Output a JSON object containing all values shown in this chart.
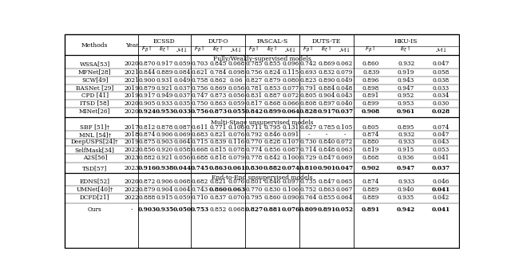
{
  "dataset_headers": [
    "ECSSD",
    "DUT-O",
    "PASCAL-S",
    "DUTS-TE",
    "HKU-IS"
  ],
  "section_headers": [
    "Fully/Weakly-supervised models",
    "Multi-Stage unsupervised models",
    "End-to-End unsupervised models"
  ],
  "rows_section1": [
    [
      "WSSA[53]",
      "2020",
      "0.870",
      "0.917",
      "0.059",
      "0.703",
      "0.845",
      "0.068",
      "0.785",
      "0.855",
      "0.096",
      "0.742",
      "0.869",
      "0.062",
      "0.860",
      "0.932",
      "0.047"
    ],
    [
      "MFNet[28]",
      "2021",
      "0.844",
      "0.889",
      "0.084",
      "0.621",
      "0.784",
      "0.098",
      "0.756",
      "0.824",
      "0.115",
      "0.693",
      "0.832",
      "0.079",
      "0.839",
      "0.919",
      "0.058"
    ],
    [
      "SCW[49]",
      "2021",
      "0.900",
      "0.931",
      "0.049",
      "0.758",
      "0.862",
      "0.06",
      "0.827",
      "0.879",
      "0.080",
      "0.823",
      "0.890",
      "0.049",
      "0.896",
      "0.943",
      "0.038"
    ],
    [
      "BASNet [29]",
      "2019",
      "0.879",
      "0.921",
      "0.037",
      "0.756",
      "0.869",
      "0.056",
      "0.781",
      "0.853",
      "0.077",
      "0.791",
      "0.884",
      "0.048",
      "0.898",
      "0.947",
      "0.033"
    ],
    [
      "CPD [41]",
      "2019",
      "0.917",
      "0.949",
      "0.037",
      "0.747",
      "0.873",
      "0.056",
      "0.831",
      "0.887",
      "0.072",
      "0.805",
      "0.904",
      "0.043",
      "0.891",
      "0.952",
      "0.034"
    ],
    [
      "ITSD [58]",
      "2020",
      "0.905",
      "0.933",
      "0.035",
      "0.750",
      "0.863",
      "0.059",
      "0.817",
      "0.868",
      "0.066",
      "0.808",
      "0.897",
      "0.040",
      "0.899",
      "0.953",
      "0.030"
    ],
    [
      "MINet[26]",
      "2020",
      "0.924",
      "0.953",
      "0.033",
      "0.756",
      "0.873",
      "0.055",
      "0.842",
      "0.899",
      "0.064",
      "0.828",
      "0.917",
      "0.037",
      "0.908",
      "0.961",
      "0.028"
    ]
  ],
  "rows_section1_bold": [
    [
      false,
      false,
      false,
      false,
      false,
      false,
      false,
      false,
      false,
      false,
      false,
      false,
      false,
      false,
      false,
      false,
      false
    ],
    [
      false,
      false,
      false,
      false,
      false,
      false,
      false,
      false,
      false,
      false,
      false,
      false,
      false,
      false,
      false,
      false,
      false
    ],
    [
      false,
      false,
      false,
      false,
      false,
      false,
      false,
      false,
      false,
      false,
      false,
      false,
      false,
      false,
      false,
      false,
      false
    ],
    [
      false,
      false,
      false,
      false,
      false,
      false,
      false,
      false,
      false,
      false,
      false,
      false,
      false,
      false,
      false,
      false,
      false
    ],
    [
      false,
      false,
      false,
      false,
      false,
      false,
      false,
      false,
      false,
      false,
      false,
      false,
      false,
      false,
      false,
      false,
      false
    ],
    [
      false,
      false,
      false,
      false,
      false,
      false,
      false,
      false,
      false,
      false,
      false,
      false,
      false,
      false,
      false,
      false,
      false
    ],
    [
      false,
      false,
      true,
      true,
      true,
      true,
      true,
      true,
      true,
      true,
      true,
      true,
      true,
      true,
      true,
      true,
      true
    ]
  ],
  "rows_section2": [
    [
      "SBF [51]†",
      "2017",
      "0.812",
      "0.878",
      "0.087",
      "0.611",
      "0.771",
      "0.106",
      "0.711",
      "0.795",
      "0.131",
      "0.627",
      "0.785",
      "0.105",
      "0.805",
      "0.895",
      "0.074"
    ],
    [
      "MNL [54]†",
      "2018",
      "0.874",
      "0.906",
      "0.069",
      "0.683",
      "0.821",
      "0.076",
      "0.792",
      "0.846",
      "0.091",
      "-",
      "-",
      "-",
      "0.874",
      "0.932",
      "0.047"
    ],
    [
      "DeepUSPS[24]†",
      "2019",
      "0.875",
      "0.903",
      "0.064",
      "0.715",
      "0.839",
      "0.116",
      "0.770",
      "0.828",
      "0.107",
      "0.730",
      "0.840",
      "0.072",
      "0.880",
      "0.933",
      "0.043"
    ],
    [
      "SelfMask[34]",
      "2022",
      "0.856",
      "0.920",
      "0.058",
      "0.668",
      "0.815",
      "0.078",
      "0.774",
      "0.856",
      "0.087",
      "0.714",
      "0.848",
      "0.063",
      "0.819",
      "0.915",
      "0.053"
    ],
    [
      "A2S[56]",
      "2023",
      "0.882",
      "0.921",
      "0.056",
      "0.688",
      "0.818",
      "0.079",
      "0.778",
      "0.842",
      "0.100",
      "0.729",
      "0.847",
      "0.069",
      "0.868",
      "0.936",
      "0.041"
    ],
    [
      "TSD[57]",
      "2023",
      "0.916",
      "0.938",
      "0.044",
      "0.745",
      "0.863",
      "0.061",
      "0.830",
      "0.882",
      "0.074",
      "0.810",
      "0.901",
      "0.047",
      "0.902",
      "0.947",
      "0.037"
    ]
  ],
  "rows_section2_bold": [
    [
      false,
      false,
      false,
      false,
      false,
      false,
      false,
      false,
      false,
      false,
      false,
      false,
      false,
      false,
      false,
      false,
      false
    ],
    [
      false,
      false,
      false,
      false,
      false,
      false,
      false,
      false,
      false,
      false,
      false,
      false,
      false,
      false,
      false,
      false,
      false
    ],
    [
      false,
      false,
      false,
      false,
      false,
      false,
      false,
      false,
      false,
      false,
      false,
      false,
      false,
      false,
      false,
      false,
      false
    ],
    [
      false,
      false,
      false,
      false,
      false,
      false,
      false,
      false,
      false,
      false,
      false,
      false,
      false,
      false,
      false,
      false,
      false
    ],
    [
      false,
      false,
      false,
      false,
      false,
      false,
      false,
      false,
      false,
      false,
      false,
      false,
      false,
      false,
      false,
      false,
      false
    ],
    [
      false,
      false,
      true,
      true,
      true,
      true,
      true,
      true,
      true,
      true,
      true,
      true,
      true,
      true,
      true,
      true,
      true
    ]
  ],
  "rows_section3": [
    [
      "EDNS[52]",
      "2020",
      "0.872",
      "0.906",
      "0.068",
      "0.682",
      "0.821",
      "0.076",
      "0.801",
      "0.846",
      "0.097",
      "0.735",
      "0.847",
      "0.065",
      "0.874",
      "0.933",
      "0.046"
    ],
    [
      "UMNet[40]†",
      "2022",
      "0.879",
      "0.904",
      "0.064",
      "0.743",
      "0.860",
      "0.063",
      "0.770",
      "0.830",
      "0.106",
      "0.752",
      "0.863",
      "0.067",
      "0.889",
      "0.940",
      "0.041"
    ],
    [
      "DCFD[21]",
      "2022",
      "0.888",
      "0.915",
      "0.059",
      "0.710",
      "0.837",
      "0.070",
      "0.795",
      "0.860",
      "0.090",
      "0.764",
      "0.855",
      "0.064",
      "0.889",
      "0.935",
      "0.042"
    ],
    [
      "Ours",
      "-",
      "0.903",
      "0.935",
      "0.050",
      "0.753",
      "0.852",
      "0.068",
      "0.827",
      "0.881",
      "0.076",
      "0.809",
      "0.891",
      "0.052",
      "0.891",
      "0.942",
      "0.041"
    ]
  ],
  "rows_section3_bold": [
    [
      false,
      false,
      false,
      false,
      false,
      false,
      false,
      false,
      false,
      false,
      false,
      false,
      false,
      false,
      false,
      false,
      false
    ],
    [
      false,
      false,
      false,
      false,
      false,
      false,
      true,
      true,
      false,
      false,
      false,
      false,
      false,
      false,
      false,
      false,
      true
    ],
    [
      false,
      false,
      false,
      false,
      false,
      false,
      false,
      false,
      false,
      false,
      false,
      false,
      false,
      false,
      false,
      false,
      false
    ],
    [
      false,
      false,
      true,
      true,
      true,
      true,
      false,
      false,
      true,
      true,
      true,
      true,
      true,
      true,
      true,
      true,
      true
    ]
  ]
}
